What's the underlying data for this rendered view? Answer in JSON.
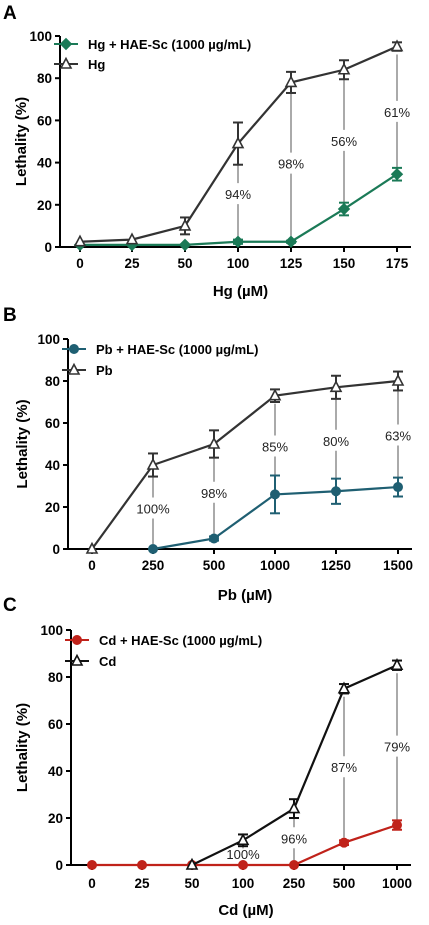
{
  "chart_data": [
    {
      "panel": "A",
      "type": "line",
      "xlabel": "Hg (µM)",
      "ylabel": "Lethality (%)",
      "categories": [
        "0",
        "25",
        "50",
        "100",
        "125",
        "150",
        "175"
      ],
      "ylim": [
        0,
        100
      ],
      "yticks": [
        "0",
        "20",
        "40",
        "60",
        "80",
        "100"
      ],
      "legend_position": "top-left",
      "series": [
        {
          "name": "Hg + HAE-Sc (1000 µg/mL)",
          "marker": "diamond",
          "color": "#1b7a57",
          "values": [
            1,
            1,
            1,
            2.5,
            2.5,
            18,
            34.5
          ],
          "errors": [
            0,
            0,
            0,
            1,
            0.5,
            3,
            3
          ]
        },
        {
          "name": "Hg",
          "marker": "open-triangle",
          "color": "#333333",
          "values": [
            2.5,
            3.5,
            10,
            49,
            78,
            84,
            95
          ],
          "errors": [
            0,
            0,
            4,
            10,
            5,
            4.5,
            2
          ]
        }
      ],
      "annotations": [
        {
          "category": "100",
          "text": "94%"
        },
        {
          "category": "125",
          "text": "98%"
        },
        {
          "category": "150",
          "text": "56%"
        },
        {
          "category": "175",
          "text": "61%"
        }
      ]
    },
    {
      "panel": "B",
      "type": "line",
      "xlabel": "Pb (µM)",
      "ylabel": "Lethality (%)",
      "categories": [
        "0",
        "250",
        "500",
        "1000",
        "1250",
        "1500"
      ],
      "ylim": [
        0,
        100
      ],
      "yticks": [
        "0",
        "20",
        "40",
        "60",
        "80",
        "100"
      ],
      "legend_position": "top-left",
      "series": [
        {
          "name": "Pb + HAE-Sc  (1000 µg/mL)",
          "marker": "circle",
          "color": "#1f5f72",
          "values": [
            null,
            0,
            5,
            26,
            27.5,
            29.5
          ],
          "errors": [
            0,
            0,
            1,
            9,
            6,
            4.5
          ]
        },
        {
          "name": "Pb",
          "marker": "open-triangle",
          "color": "#333333",
          "values": [
            0,
            40,
            50,
            73,
            77,
            80
          ],
          "errors": [
            0,
            5.5,
            6.5,
            3,
            5.5,
            4.5
          ]
        }
      ],
      "annotations": [
        {
          "category": "250",
          "text": "100%"
        },
        {
          "category": "500",
          "text": "98%"
        },
        {
          "category": "1000",
          "text": "85%"
        },
        {
          "category": "1250",
          "text": "80%"
        },
        {
          "category": "1500",
          "text": "63%"
        }
      ]
    },
    {
      "panel": "C",
      "type": "line",
      "xlabel": "Cd (µM)",
      "ylabel": "Lethality (%)",
      "categories": [
        "0",
        "25",
        "50",
        "100",
        "250",
        "500",
        "1000"
      ],
      "ylim": [
        0,
        100
      ],
      "yticks": [
        "0",
        "20",
        "40",
        "60",
        "80",
        "100"
      ],
      "legend_position": "top-left",
      "series": [
        {
          "name": "Cd + HAE-Sc  (1000 µg/mL)",
          "marker": "circle",
          "color": "#c0221a",
          "values": [
            0,
            0,
            0,
            0,
            0,
            9.5,
            17
          ],
          "errors": [
            0,
            0,
            0,
            0,
            0,
            1,
            2
          ]
        },
        {
          "name": "Cd",
          "marker": "open-triangle",
          "color": "#111111",
          "values": [
            null,
            null,
            0,
            10.5,
            24,
            75,
            85
          ],
          "errors": [
            0,
            0,
            0,
            2.5,
            4,
            2,
            2
          ]
        }
      ],
      "annotations": [
        {
          "category": "100",
          "text": "100%"
        },
        {
          "category": "250",
          "text": "96%"
        },
        {
          "category": "500",
          "text": "87%"
        },
        {
          "category": "1000",
          "text": "79%"
        }
      ]
    }
  ]
}
